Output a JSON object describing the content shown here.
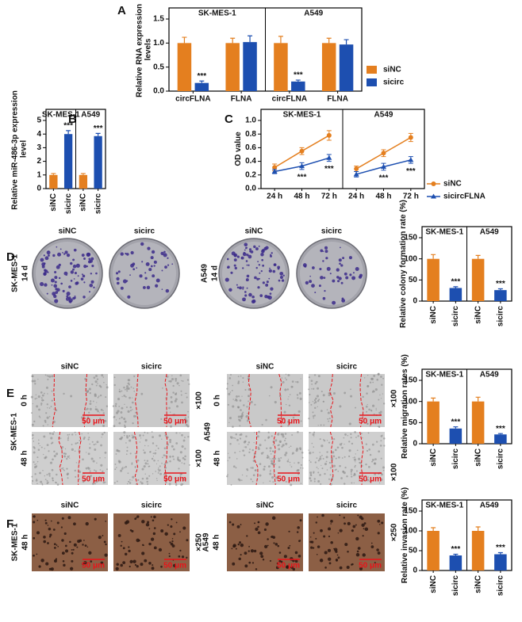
{
  "panels": [
    "A",
    "B",
    "C",
    "D",
    "E",
    "F"
  ],
  "colony": {
    "columns": [
      "siNC",
      "sicirc",
      "siNC",
      "sicirc"
    ],
    "rows": [
      {
        "cell_line": "SK-MES-1",
        "time": "14 d"
      },
      {
        "cell_line": "A549",
        "time": "14 d"
      }
    ]
  },
  "migration": {
    "columns": [
      "siNC",
      "sicirc",
      "siNC",
      "sicirc"
    ],
    "cell_lines": [
      "SK-MES-1",
      "A549"
    ],
    "times": [
      "0 h",
      "48 h"
    ],
    "magnification": "×100",
    "scale_bar": "50 μm"
  },
  "invasion": {
    "columns": [
      "siNC",
      "sicirc",
      "siNC",
      "sicirc"
    ],
    "rows": [
      {
        "cell_line": "SK-MES-1",
        "time": "48 h"
      },
      {
        "cell_line": "A549",
        "time": "48 h"
      }
    ],
    "magnification": "×250",
    "scale_bar": "50 μm"
  },
  "chart_data": [
    {
      "type": "bar",
      "y_label": "Relative RNA expression levels",
      "facets": [
        {
          "title": "SK-MES-1",
          "categories": [
            "circFLNA",
            "FLNA"
          ]
        },
        {
          "title": "A549",
          "categories": [
            "circFLNA",
            "FLNA"
          ]
        }
      ],
      "series": [
        {
          "name": "siNC",
          "color": "#e47f1f",
          "values": [
            1,
            1,
            1,
            1
          ],
          "errors": [
            0.12,
            0.1,
            0.14,
            0.1
          ]
        },
        {
          "name": "sicirc",
          "color": "#1d4fb0",
          "values": [
            0.17,
            1.02,
            0.2,
            0.97
          ],
          "errors": [
            0.04,
            0.13,
            0.03,
            0.1
          ],
          "significance": [
            "***",
            null,
            "***",
            null
          ]
        }
      ],
      "ylim": [
        0,
        1.5
      ],
      "yticks": [
        {
          "value": 0,
          "label": "0.0"
        },
        0.5,
        {
          "value": 1,
          "label": "1.0"
        },
        1.5
      ],
      "legend": "right"
    },
    {
      "type": "bar",
      "y_label": "Relative miR-486-3p expression level",
      "facets": [
        {
          "title": "SK-MES-1",
          "categories": [
            "siNC",
            "sicirc"
          ]
        },
        {
          "title": "A549",
          "categories": [
            "siNC",
            "sicirc"
          ]
        }
      ],
      "series": [
        {
          "colors": [
            "#e47f1f",
            "#1d4fb0",
            "#e47f1f",
            "#1d4fb0"
          ],
          "values": [
            1,
            4,
            1,
            3.85
          ],
          "errors": [
            0.1,
            0.25,
            0.1,
            0.2
          ],
          "significance": [
            null,
            "***",
            null,
            "***"
          ]
        }
      ],
      "ylim": [
        0,
        5
      ],
      "yticks": [
        0,
        1,
        2,
        3,
        4,
        5
      ]
    },
    {
      "type": "line",
      "y_label": "OD value",
      "facets": [
        {
          "title": "SK-MES-1",
          "categories": [
            "24 h",
            "48 h",
            "72 h"
          ]
        },
        {
          "title": "A549",
          "categories": [
            "24 h",
            "48 h",
            "72 h"
          ]
        }
      ],
      "series": [
        {
          "name": "siNC",
          "color": "#e47f1f",
          "marker": "circle",
          "values": [
            0.31,
            0.55,
            0.78,
            0.29,
            0.52,
            0.75
          ],
          "errors": [
            0.05,
            0.05,
            0.07,
            0.04,
            0.05,
            0.06
          ]
        },
        {
          "name": "sicircFLNA",
          "color": "#1d4fb0",
          "marker": "triangle",
          "values": [
            0.25,
            0.33,
            0.45,
            0.21,
            0.32,
            0.42
          ],
          "errors": [
            0.03,
            0.05,
            0.05,
            0.04,
            0.05,
            0.05
          ],
          "significance": [
            null,
            "***",
            "***",
            null,
            "***",
            "***"
          ]
        }
      ],
      "ylim": [
        0,
        1
      ],
      "yticks": [
        {
          "value": 0,
          "label": "0.0"
        },
        0.2,
        0.4,
        0.6,
        0.8,
        {
          "value": 1,
          "label": "1.0"
        }
      ],
      "legend": "right"
    },
    {
      "type": "bar",
      "y_label": "Relative colony formation rate (%)",
      "facets": [
        {
          "title": "SK-MES-1",
          "categories": [
            "siNC",
            "sicirc"
          ]
        },
        {
          "title": "A549",
          "categories": [
            "siNC",
            "sicirc"
          ]
        }
      ],
      "series": [
        {
          "colors": [
            "#e47f1f",
            "#1d4fb0",
            "#e47f1f",
            "#1d4fb0"
          ],
          "values": [
            100,
            31,
            100,
            26
          ],
          "errors": [
            10,
            3,
            8,
            3
          ],
          "significance": [
            null,
            "***",
            null,
            "***"
          ]
        }
      ],
      "ylim": [
        0,
        150
      ],
      "yticks": [
        0,
        50,
        100,
        150
      ]
    },
    {
      "type": "bar",
      "y_label": "Relative migration rates (%)",
      "facets": [
        {
          "title": "SK-MES-1",
          "categories": [
            "siNC",
            "sicirc"
          ]
        },
        {
          "title": "A549",
          "categories": [
            "siNC",
            "sicirc"
          ]
        }
      ],
      "series": [
        {
          "colors": [
            "#e47f1f",
            "#1d4fb0",
            "#e47f1f",
            "#1d4fb0"
          ],
          "values": [
            100,
            36,
            100,
            22
          ],
          "errors": [
            8,
            4,
            10,
            2
          ],
          "significance": [
            null,
            "***",
            null,
            "***"
          ]
        }
      ],
      "ylim": [
        0,
        150
      ],
      "yticks": [
        0,
        50,
        100,
        150
      ]
    },
    {
      "type": "bar",
      "y_label": "Relative invasion rate (%)",
      "facets": [
        {
          "title": "SK-MES-1",
          "categories": [
            "siNC",
            "sicirc"
          ]
        },
        {
          "title": "A549",
          "categories": [
            "siNC",
            "sicirc"
          ]
        }
      ],
      "series": [
        {
          "colors": [
            "#e47f1f",
            "#1d4fb0",
            "#e47f1f",
            "#1d4fb0"
          ],
          "values": [
            100,
            38,
            100,
            41
          ],
          "errors": [
            8,
            3,
            10,
            4
          ],
          "significance": [
            null,
            "***",
            null,
            "***"
          ]
        }
      ],
      "ylim": [
        0,
        150
      ],
      "yticks": [
        0,
        50,
        100,
        150
      ]
    }
  ]
}
